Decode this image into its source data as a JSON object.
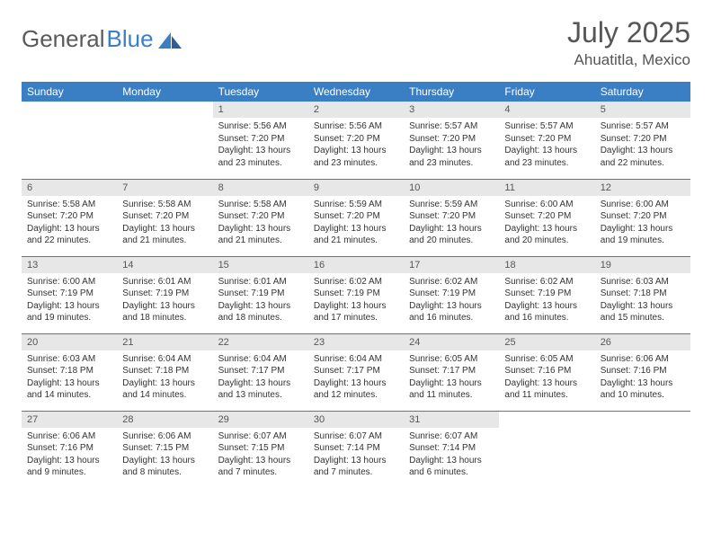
{
  "brand": {
    "part1": "General",
    "part2": "Blue"
  },
  "title": "July 2025",
  "location": "Ahuatitla, Mexico",
  "header_bg": "#3a7fc4",
  "header_fg": "#ffffff",
  "daynum_bg": "#e7e7e7",
  "border_color": "#3a7fc4",
  "text_color": "#333333",
  "day_headers": [
    "Sunday",
    "Monday",
    "Tuesday",
    "Wednesday",
    "Thursday",
    "Friday",
    "Saturday"
  ],
  "weeks": [
    [
      null,
      null,
      {
        "n": "1",
        "sunrise": "5:56 AM",
        "sunset": "7:20 PM",
        "daylight": "13 hours and 23 minutes."
      },
      {
        "n": "2",
        "sunrise": "5:56 AM",
        "sunset": "7:20 PM",
        "daylight": "13 hours and 23 minutes."
      },
      {
        "n": "3",
        "sunrise": "5:57 AM",
        "sunset": "7:20 PM",
        "daylight": "13 hours and 23 minutes."
      },
      {
        "n": "4",
        "sunrise": "5:57 AM",
        "sunset": "7:20 PM",
        "daylight": "13 hours and 23 minutes."
      },
      {
        "n": "5",
        "sunrise": "5:57 AM",
        "sunset": "7:20 PM",
        "daylight": "13 hours and 22 minutes."
      }
    ],
    [
      {
        "n": "6",
        "sunrise": "5:58 AM",
        "sunset": "7:20 PM",
        "daylight": "13 hours and 22 minutes."
      },
      {
        "n": "7",
        "sunrise": "5:58 AM",
        "sunset": "7:20 PM",
        "daylight": "13 hours and 21 minutes."
      },
      {
        "n": "8",
        "sunrise": "5:58 AM",
        "sunset": "7:20 PM",
        "daylight": "13 hours and 21 minutes."
      },
      {
        "n": "9",
        "sunrise": "5:59 AM",
        "sunset": "7:20 PM",
        "daylight": "13 hours and 21 minutes."
      },
      {
        "n": "10",
        "sunrise": "5:59 AM",
        "sunset": "7:20 PM",
        "daylight": "13 hours and 20 minutes."
      },
      {
        "n": "11",
        "sunrise": "6:00 AM",
        "sunset": "7:20 PM",
        "daylight": "13 hours and 20 minutes."
      },
      {
        "n": "12",
        "sunrise": "6:00 AM",
        "sunset": "7:20 PM",
        "daylight": "13 hours and 19 minutes."
      }
    ],
    [
      {
        "n": "13",
        "sunrise": "6:00 AM",
        "sunset": "7:19 PM",
        "daylight": "13 hours and 19 minutes."
      },
      {
        "n": "14",
        "sunrise": "6:01 AM",
        "sunset": "7:19 PM",
        "daylight": "13 hours and 18 minutes."
      },
      {
        "n": "15",
        "sunrise": "6:01 AM",
        "sunset": "7:19 PM",
        "daylight": "13 hours and 18 minutes."
      },
      {
        "n": "16",
        "sunrise": "6:02 AM",
        "sunset": "7:19 PM",
        "daylight": "13 hours and 17 minutes."
      },
      {
        "n": "17",
        "sunrise": "6:02 AM",
        "sunset": "7:19 PM",
        "daylight": "13 hours and 16 minutes."
      },
      {
        "n": "18",
        "sunrise": "6:02 AM",
        "sunset": "7:19 PM",
        "daylight": "13 hours and 16 minutes."
      },
      {
        "n": "19",
        "sunrise": "6:03 AM",
        "sunset": "7:18 PM",
        "daylight": "13 hours and 15 minutes."
      }
    ],
    [
      {
        "n": "20",
        "sunrise": "6:03 AM",
        "sunset": "7:18 PM",
        "daylight": "13 hours and 14 minutes."
      },
      {
        "n": "21",
        "sunrise": "6:04 AM",
        "sunset": "7:18 PM",
        "daylight": "13 hours and 14 minutes."
      },
      {
        "n": "22",
        "sunrise": "6:04 AM",
        "sunset": "7:17 PM",
        "daylight": "13 hours and 13 minutes."
      },
      {
        "n": "23",
        "sunrise": "6:04 AM",
        "sunset": "7:17 PM",
        "daylight": "13 hours and 12 minutes."
      },
      {
        "n": "24",
        "sunrise": "6:05 AM",
        "sunset": "7:17 PM",
        "daylight": "13 hours and 11 minutes."
      },
      {
        "n": "25",
        "sunrise": "6:05 AM",
        "sunset": "7:16 PM",
        "daylight": "13 hours and 11 minutes."
      },
      {
        "n": "26",
        "sunrise": "6:06 AM",
        "sunset": "7:16 PM",
        "daylight": "13 hours and 10 minutes."
      }
    ],
    [
      {
        "n": "27",
        "sunrise": "6:06 AM",
        "sunset": "7:16 PM",
        "daylight": "13 hours and 9 minutes."
      },
      {
        "n": "28",
        "sunrise": "6:06 AM",
        "sunset": "7:15 PM",
        "daylight": "13 hours and 8 minutes."
      },
      {
        "n": "29",
        "sunrise": "6:07 AM",
        "sunset": "7:15 PM",
        "daylight": "13 hours and 7 minutes."
      },
      {
        "n": "30",
        "sunrise": "6:07 AM",
        "sunset": "7:14 PM",
        "daylight": "13 hours and 7 minutes."
      },
      {
        "n": "31",
        "sunrise": "6:07 AM",
        "sunset": "7:14 PM",
        "daylight": "13 hours and 6 minutes."
      },
      null,
      null
    ]
  ],
  "labels": {
    "sunrise": "Sunrise:",
    "sunset": "Sunset:",
    "daylight": "Daylight:"
  }
}
